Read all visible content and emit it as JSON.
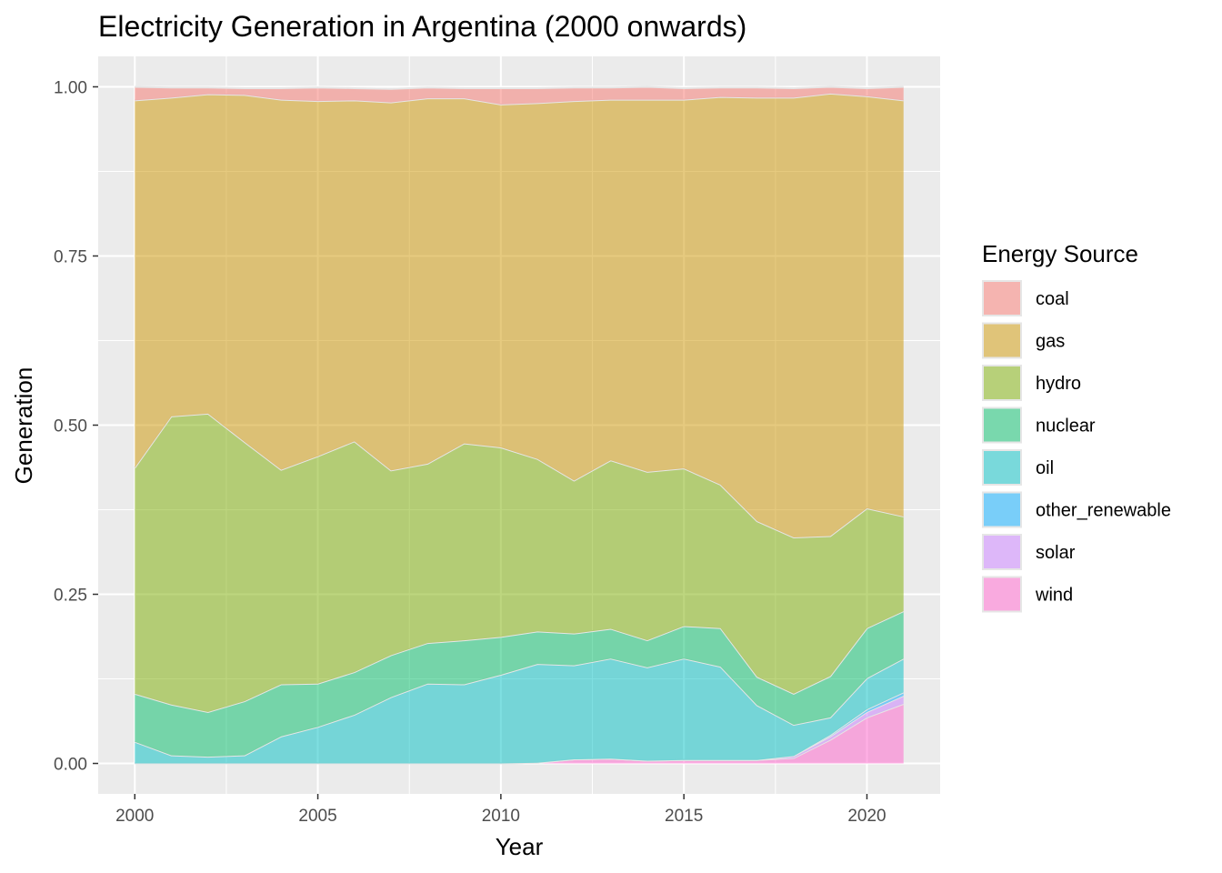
{
  "chart_data": {
    "type": "area",
    "stacked": true,
    "title": "Electricity Generation in Argentina (2000 onwards)",
    "xlabel": "Year",
    "ylabel": "Generation",
    "xlim": [
      1999,
      2022
    ],
    "ylim": [
      -0.045,
      1.045
    ],
    "x_ticks": [
      2000,
      2005,
      2010,
      2015,
      2020
    ],
    "x_tick_labels": [
      "2000",
      "2005",
      "2010",
      "2015",
      "2020"
    ],
    "y_ticks": [
      0,
      0.25,
      0.5,
      0.75,
      1.0
    ],
    "y_tick_labels": [
      "0.00",
      "0.25",
      "0.50",
      "0.75",
      "1.00"
    ],
    "grid": true,
    "legend": {
      "title": "Energy Source",
      "placement": "right"
    },
    "x": [
      2000,
      2001,
      2002,
      2003,
      2004,
      2005,
      2006,
      2007,
      2008,
      2009,
      2010,
      2011,
      2012,
      2013,
      2014,
      2015,
      2016,
      2017,
      2018,
      2019,
      2020,
      2021
    ],
    "series": [
      {
        "name": "coal",
        "color": "#F8766D",
        "values": [
          0.02,
          0.015,
          0.01,
          0.01,
          0.017,
          0.02,
          0.018,
          0.02,
          0.016,
          0.015,
          0.024,
          0.022,
          0.02,
          0.018,
          0.019,
          0.017,
          0.014,
          0.015,
          0.014,
          0.01,
          0.012,
          0.02
        ]
      },
      {
        "name": "gas",
        "color": "#CD9600",
        "values": [
          0.543,
          0.471,
          0.472,
          0.513,
          0.547,
          0.525,
          0.504,
          0.544,
          0.54,
          0.51,
          0.507,
          0.526,
          0.561,
          0.533,
          0.55,
          0.545,
          0.573,
          0.626,
          0.65,
          0.654,
          0.609,
          0.615
        ]
      },
      {
        "name": "hydro",
        "color": "#7CAE00",
        "values": [
          0.334,
          0.426,
          0.441,
          0.383,
          0.317,
          0.336,
          0.341,
          0.273,
          0.265,
          0.291,
          0.28,
          0.255,
          0.226,
          0.249,
          0.249,
          0.233,
          0.212,
          0.23,
          0.231,
          0.207,
          0.177,
          0.14
        ]
      },
      {
        "name": "nuclear",
        "color": "#00BE67",
        "values": [
          0.071,
          0.075,
          0.066,
          0.08,
          0.077,
          0.064,
          0.063,
          0.062,
          0.06,
          0.065,
          0.056,
          0.048,
          0.047,
          0.044,
          0.04,
          0.048,
          0.057,
          0.042,
          0.046,
          0.061,
          0.074,
          0.07
        ]
      },
      {
        "name": "oil",
        "color": "#00BFC4",
        "values": [
          0.032,
          0.012,
          0.01,
          0.012,
          0.04,
          0.054,
          0.072,
          0.098,
          0.118,
          0.117,
          0.131,
          0.146,
          0.139,
          0.148,
          0.138,
          0.15,
          0.138,
          0.081,
          0.046,
          0.026,
          0.046,
          0.05
        ]
      },
      {
        "name": "other_renewable",
        "color": "#00A9FF",
        "values": [
          0.0,
          0.0,
          0.0,
          0.0,
          0.0,
          0.0,
          0.0,
          0.0,
          0.0,
          0.0,
          0.0,
          0.0,
          0.0,
          0.0,
          0.0,
          0.0,
          0.0,
          0.0,
          0.0,
          0.002,
          0.004,
          0.005
        ]
      },
      {
        "name": "solar",
        "color": "#C77CFF",
        "values": [
          0.0,
          0.0,
          0.0,
          0.0,
          0.0,
          0.0,
          0.0,
          0.0,
          0.0,
          0.0,
          0.0,
          0.0,
          0.0,
          0.0,
          0.0,
          0.0,
          0.0,
          0.0,
          0.003,
          0.005,
          0.008,
          0.012
        ]
      },
      {
        "name": "wind",
        "color": "#FF61CC",
        "values": [
          0.0,
          0.0,
          0.0,
          0.0,
          0.0,
          0.0,
          0.0,
          0.0,
          0.0,
          0.0,
          0.0,
          0.001,
          0.006,
          0.007,
          0.004,
          0.005,
          0.005,
          0.005,
          0.008,
          0.035,
          0.068,
          0.088
        ]
      }
    ]
  }
}
